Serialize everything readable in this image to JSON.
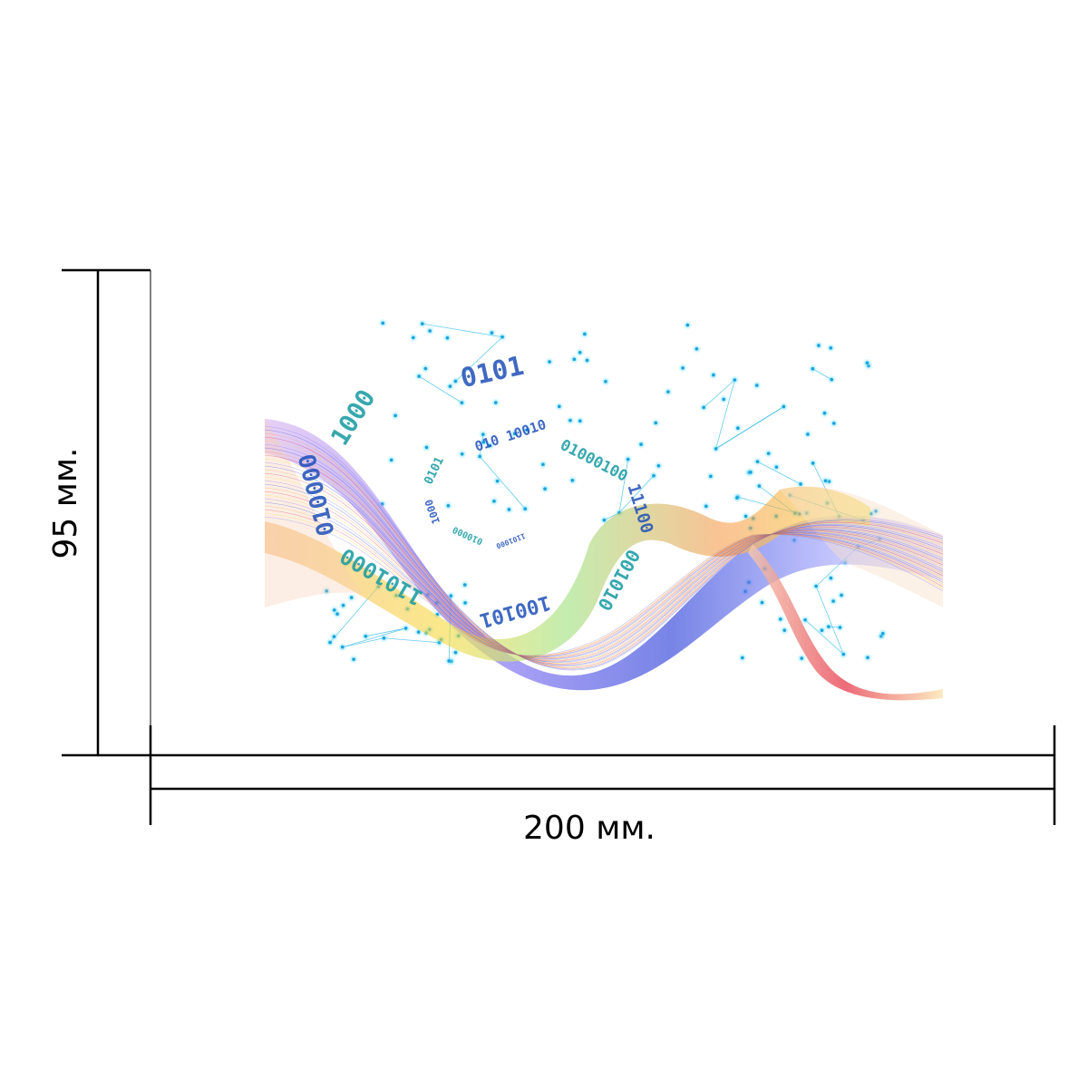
{
  "dimensions": {
    "width_label": "200 мм.",
    "height_label": "95 мм."
  },
  "artwork": {
    "binary_fragments": [
      "1101000",
      "010000",
      "1000",
      "0101",
      "010 10010",
      "01000100",
      "11100",
      "001010",
      "100101"
    ],
    "colors": {
      "network": "#27b6e6",
      "network_dot": "#1aa3dc",
      "binary_blue": "#1f4fb8",
      "binary_teal": "#159aa0",
      "wave_violet": "#7b6cf0",
      "wave_blue": "#2b3fd8",
      "wave_yellow": "#f5d93a",
      "wave_orange": "#f59a4a",
      "wave_red": "#e3263a",
      "wave_green": "#9be07a"
    }
  }
}
